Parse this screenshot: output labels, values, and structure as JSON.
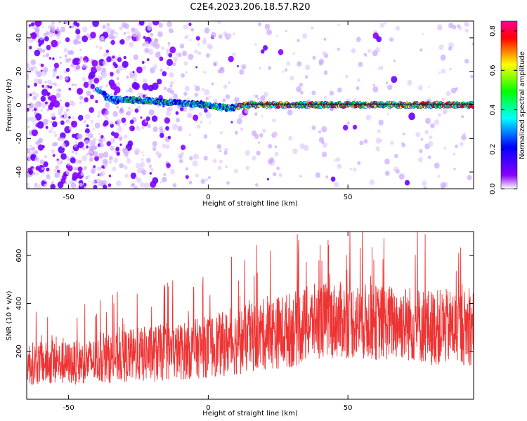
{
  "figure": {
    "title": "C2E4.2023.206.18.57.R20"
  },
  "chart_data": [
    {
      "type": "heatmap",
      "xlabel": "Height of straight line (km)",
      "ylabel": "Frequency (Hz)",
      "xlim": [
        -65,
        95
      ],
      "ylim": [
        -50,
        50
      ],
      "xticks": [
        -50,
        0,
        50
      ],
      "yticks": [
        -40,
        -20,
        0,
        20,
        40
      ],
      "grid": false,
      "colorbar": {
        "label": "Normalized spectral amplitude",
        "range": [
          0.0,
          0.85
        ],
        "ticks": [
          0.0,
          0.2,
          0.4,
          0.6,
          0.8
        ],
        "colormap": [
          "#ffffff",
          "#8800ff",
          "#0000ff",
          "#00ffff",
          "#00ff00",
          "#ffff00",
          "#ff0000",
          "#ff0099"
        ]
      },
      "ridge": {
        "description_points": [
          [
            -40,
            10
          ],
          [
            -35,
            3
          ],
          [
            -25,
            3
          ],
          [
            -10,
            1
          ],
          [
            0,
            0
          ],
          [
            7,
            -2
          ],
          [
            15,
            0
          ],
          [
            30,
            0
          ],
          [
            60,
            0
          ],
          [
            95,
            0
          ]
        ],
        "line_y": 0.5
      },
      "noise_density": {
        "x": [
          -65,
          -40,
          -25,
          -10,
          0,
          15,
          30,
          50,
          70,
          95
        ],
        "level": [
          1.0,
          0.95,
          0.75,
          0.45,
          0.32,
          0.22,
          0.15,
          0.14,
          0.16,
          0.18
        ]
      }
    },
    {
      "type": "line",
      "xlabel": "Height of straight line (km)",
      "ylabel": "SNR (10 * v/v)",
      "xlim": [
        -65,
        95
      ],
      "ylim": [
        0,
        700
      ],
      "xticks": [
        -50,
        0,
        50
      ],
      "yticks": [
        200,
        400,
        600
      ],
      "grid": false,
      "series": [
        {
          "color": "#ee3333",
          "envelope": {
            "x": [
              -65,
              -50,
              -40,
              -30,
              -20,
              -10,
              0,
              10,
              20,
              30,
              40,
              50,
              60,
              70,
              80,
              90,
              95
            ],
            "mean": [
              150,
              150,
              160,
              180,
              190,
              200,
              220,
              240,
              270,
              290,
              330,
              330,
              320,
              320,
              300,
              300,
              300
            ],
            "spread": [
              90,
              90,
              95,
              110,
              120,
              120,
              130,
              140,
              150,
              160,
              160,
              160,
              160,
              160,
              160,
              160,
              160
            ]
          }
        }
      ]
    }
  ]
}
